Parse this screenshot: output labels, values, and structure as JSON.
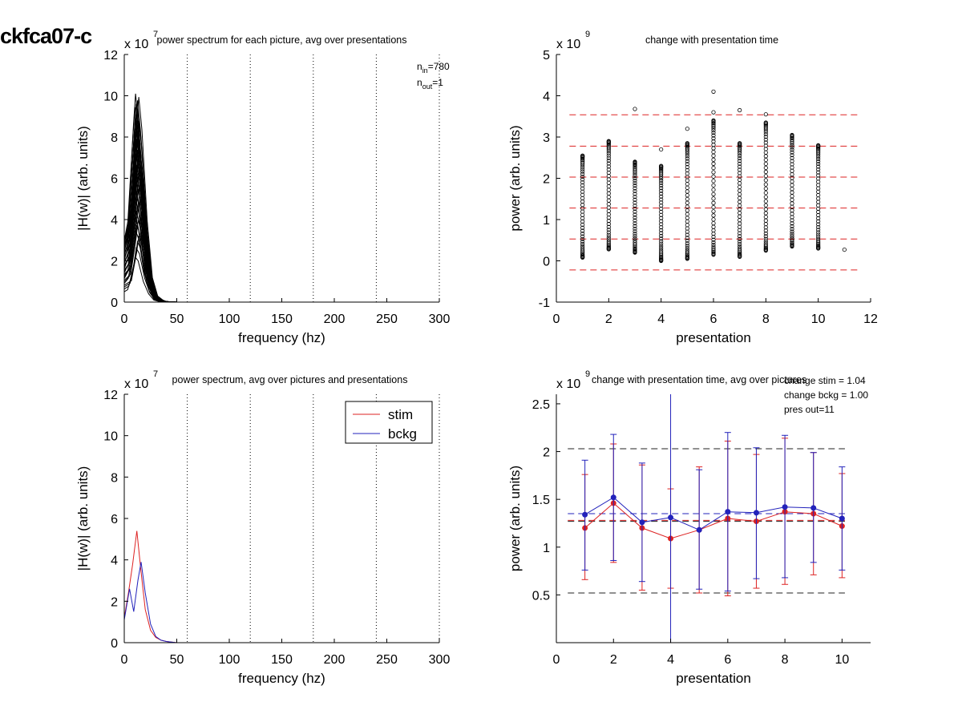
{
  "page_title": "ckfca07-c",
  "chart_data": [
    {
      "type": "line",
      "title": "power spectrum for each picture, avg over presentations",
      "xlabel": "frequency (hz)",
      "ylabel": "|H(w)| (arb. units)",
      "exponent": {
        "base": "x 10",
        "power": "7"
      },
      "xlim": [
        0,
        300
      ],
      "ylim": [
        0,
        12
      ],
      "xticks": [
        0,
        50,
        100,
        150,
        200,
        250,
        300
      ],
      "yticks": [
        0,
        2,
        4,
        6,
        8,
        10,
        12
      ],
      "vlines": [
        60,
        120,
        180,
        240,
        300
      ],
      "annotations": [
        {
          "base": "n",
          "sub": "in",
          "value": "=780"
        },
        {
          "base": "n",
          "sub": "out",
          "value": "=1"
        }
      ],
      "frequency_hz": [
        0,
        5,
        10,
        12,
        15,
        20,
        25,
        30,
        35,
        40,
        45,
        50,
        60,
        80,
        100,
        300
      ],
      "curve_count_drawn": 40,
      "envelope": {
        "upper": [
          3.0,
          4.0,
          8.6,
          10.1,
          8.5,
          4.0,
          1.2,
          0.3,
          0.1,
          0.03,
          0.01,
          0.0,
          0.0,
          0.0,
          0.0,
          0.0
        ],
        "lower": [
          0.5,
          0.6,
          1.5,
          2.2,
          2.0,
          1.0,
          0.4,
          0.1,
          0.03,
          0.0,
          0.0,
          0.0,
          0.0,
          0.0,
          0.0,
          0.0
        ]
      },
      "grid": false
    },
    {
      "type": "scatter",
      "title": "change with presentation time",
      "xlabel": "presentation",
      "ylabel": "power (arb. units)",
      "exponent": {
        "base": "x 10",
        "power": "9"
      },
      "xlim": [
        0,
        12
      ],
      "ylim": [
        -1,
        5
      ],
      "xticks": [
        0,
        2,
        4,
        6,
        8,
        10,
        12
      ],
      "yticks": [
        -1,
        0,
        1,
        2,
        3,
        4,
        5
      ],
      "hlines": [
        -1.0,
        -0.22,
        0.53,
        1.28,
        2.03,
        2.78,
        3.54
      ],
      "hline_color": "#dd2222",
      "marker": "open-circle",
      "columns": [
        {
          "x": 1,
          "min": 0.08,
          "max": 2.55,
          "outliers": []
        },
        {
          "x": 2,
          "min": 0.28,
          "max": 2.9,
          "outliers": []
        },
        {
          "x": 3,
          "min": 0.2,
          "max": 2.4,
          "outliers": [
            3.68
          ]
        },
        {
          "x": 4,
          "min": 0.0,
          "max": 2.3,
          "outliers": [
            2.7
          ]
        },
        {
          "x": 5,
          "min": 0.05,
          "max": 2.85,
          "outliers": [
            3.2
          ]
        },
        {
          "x": 6,
          "min": 0.15,
          "max": 3.4,
          "outliers": [
            3.6,
            4.1
          ]
        },
        {
          "x": 7,
          "min": 0.1,
          "max": 2.85,
          "outliers": [
            3.65
          ]
        },
        {
          "x": 8,
          "min": 0.25,
          "max": 3.35,
          "outliers": [
            3.55
          ]
        },
        {
          "x": 9,
          "min": 0.35,
          "max": 3.05,
          "outliers": []
        },
        {
          "x": 10,
          "min": 0.3,
          "max": 2.8,
          "outliers": []
        },
        {
          "x": 11,
          "min": 0.27,
          "max": 0.27,
          "outliers": []
        }
      ],
      "grid": false
    },
    {
      "type": "line",
      "title": "power spectrum, avg over pictures and presentations",
      "xlabel": "frequency (hz)",
      "ylabel": "|H(w)| (arb. units)",
      "exponent": {
        "base": "x 10",
        "power": "7"
      },
      "xlim": [
        0,
        300
      ],
      "ylim": [
        0,
        12
      ],
      "xticks": [
        0,
        50,
        100,
        150,
        200,
        250,
        300
      ],
      "yticks": [
        0,
        2,
        4,
        6,
        8,
        10,
        12
      ],
      "vlines": [
        60,
        120,
        180,
        240,
        300
      ],
      "legend_position": "top-right",
      "series": [
        {
          "name": "stim",
          "color": "#dd2222",
          "x": [
            0,
            4,
            8,
            12,
            16,
            20,
            25,
            30,
            35,
            40,
            45,
            50,
            60,
            300
          ],
          "values": [
            1.2,
            2.4,
            3.8,
            5.4,
            3.4,
            1.6,
            0.6,
            0.25,
            0.12,
            0.06,
            0.03,
            0.0,
            0.0,
            0.0
          ]
        },
        {
          "name": "bckg",
          "color": "#2222bb",
          "x": [
            0,
            5,
            9,
            13,
            16,
            20,
            25,
            30,
            35,
            40,
            45,
            50,
            60,
            300
          ],
          "values": [
            1.1,
            2.6,
            1.5,
            3.0,
            3.9,
            2.4,
            0.9,
            0.3,
            0.12,
            0.06,
            0.03,
            0.0,
            0.0,
            0.0
          ]
        }
      ],
      "grid": false
    },
    {
      "type": "line",
      "title": "change with presentation time, avg over pictures",
      "xlabel": "presentation",
      "ylabel": "power (arb. units)",
      "exponent": {
        "base": "x 10",
        "power": "9"
      },
      "xlim": [
        0,
        11
      ],
      "ylim": [
        0,
        2.6
      ],
      "xticks": [
        0,
        2,
        4,
        6,
        8,
        10
      ],
      "yticks": [
        0.5,
        1,
        1.5,
        2,
        2.5
      ],
      "annotations": [
        "change stim = 1.04",
        "change bckg = 1.00",
        "pres out=11"
      ],
      "hlines": [
        {
          "y": 0.52,
          "color": "#222222"
        },
        {
          "y": 1.27,
          "color": "#222222"
        },
        {
          "y": 2.03,
          "color": "#222222"
        },
        {
          "y": 1.28,
          "color": "#dd2222"
        },
        {
          "y": 1.35,
          "color": "#2222bb"
        }
      ],
      "series": [
        {
          "name": "stim",
          "color": "#dd2222",
          "x": [
            1,
            2,
            3,
            4,
            5,
            6,
            7,
            8,
            9,
            10
          ],
          "values": [
            1.2,
            1.46,
            1.2,
            1.09,
            1.18,
            1.3,
            1.27,
            1.37,
            1.35,
            1.22
          ],
          "err_low": [
            0.66,
            0.84,
            0.55,
            0.57,
            0.52,
            0.49,
            0.57,
            0.61,
            0.71,
            0.68
          ],
          "err_high": [
            1.76,
            2.08,
            1.86,
            1.61,
            1.84,
            2.11,
            1.97,
            2.14,
            1.99,
            1.77
          ]
        },
        {
          "name": "bckg",
          "color": "#2222bb",
          "x": [
            1,
            2,
            3,
            4,
            5,
            6,
            7,
            8,
            9,
            10
          ],
          "values": [
            1.34,
            1.52,
            1.26,
            1.31,
            1.18,
            1.37,
            1.36,
            1.42,
            1.41,
            1.3
          ],
          "err_low": [
            0.76,
            0.86,
            0.64,
            0.0,
            0.56,
            0.54,
            0.67,
            0.68,
            0.84,
            0.76
          ],
          "err_high": [
            1.91,
            2.18,
            1.88,
            2.6,
            1.81,
            2.2,
            2.04,
            2.17,
            1.99,
            1.84
          ]
        }
      ],
      "grid": false
    }
  ]
}
